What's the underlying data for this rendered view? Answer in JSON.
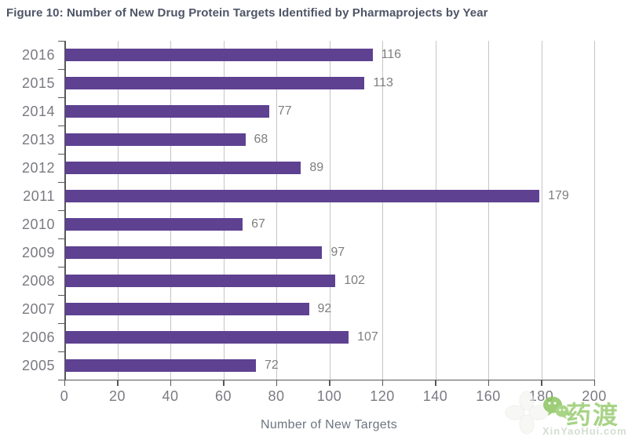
{
  "figure": {
    "title": "Figure 10: Number of New Drug Protein Targets Identified by Pharmaprojects by Year"
  },
  "chart_data": {
    "type": "bar",
    "orientation": "horizontal",
    "title": "Figure 10: Number of New Drug Protein Targets Identified by Pharmaprojects by Year",
    "categories": [
      "2016",
      "2015",
      "2014",
      "2013",
      "2012",
      "2011",
      "2010",
      "2009",
      "2008",
      "2007",
      "2006",
      "2005"
    ],
    "values": [
      116,
      113,
      77,
      68,
      89,
      179,
      67,
      97,
      102,
      92,
      107,
      72
    ],
    "xlabel": "Number of New Targets",
    "ylabel": "",
    "xlim": [
      0,
      200
    ],
    "xticks": [
      0,
      20,
      40,
      60,
      80,
      100,
      120,
      140,
      160,
      180,
      200
    ],
    "grid": true,
    "legend": "none",
    "bar_color": "#5e4191",
    "grid_color": "#c5c5c7",
    "axis_color": "#58585a",
    "tick_label_color": "#7a7a82",
    "value_label_color": "#7e7e7e",
    "title_color": "#4e5566"
  },
  "watermark": {
    "brand_text": "药渡",
    "url_text": "XinYaoHui.com",
    "brand_color": "#8cc560"
  }
}
